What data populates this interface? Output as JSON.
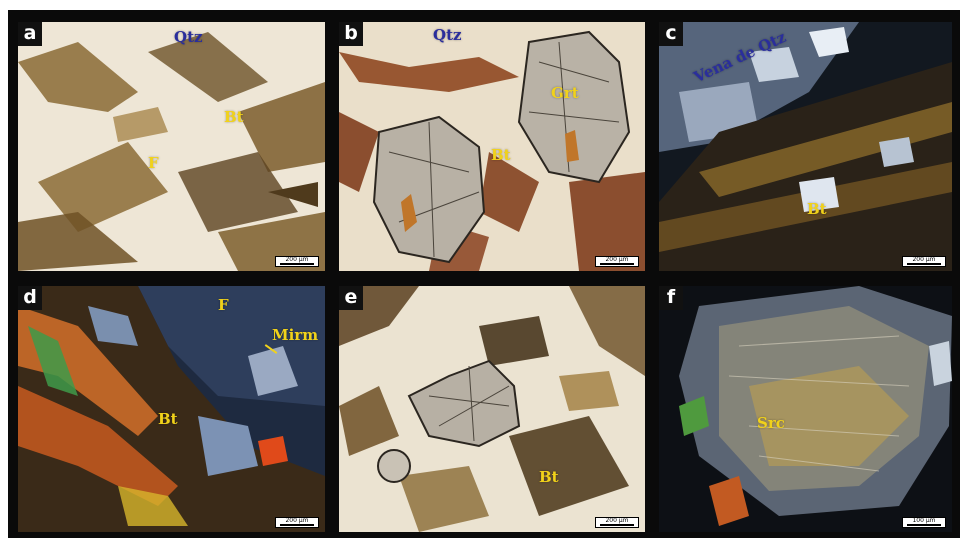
{
  "figure": {
    "panels": [
      {
        "letter": "a",
        "labels": [
          "Qtz",
          "Bt",
          "F"
        ],
        "scale": "200 µm"
      },
      {
        "letter": "b",
        "labels": [
          "Qtz",
          "Grt",
          "Bt"
        ],
        "scale": "200 µm"
      },
      {
        "letter": "c",
        "labels": [
          "Vena de Qtz",
          "Bt"
        ],
        "scale": "200 µm"
      },
      {
        "letter": "d",
        "labels": [
          "F",
          "Mirm",
          "Bt"
        ],
        "scale": "200 µm"
      },
      {
        "letter": "e",
        "labels": [
          "Bt"
        ],
        "scale": "200 µm"
      },
      {
        "letter": "f",
        "labels": [
          "Src"
        ],
        "scale": "100 µm"
      }
    ]
  },
  "colors": {
    "label_blue": "#2a2e9c",
    "label_yellow": "#f1d21a",
    "biotite_brown": "#7a5a2a",
    "quartz_ppl": "#efe9dc"
  }
}
